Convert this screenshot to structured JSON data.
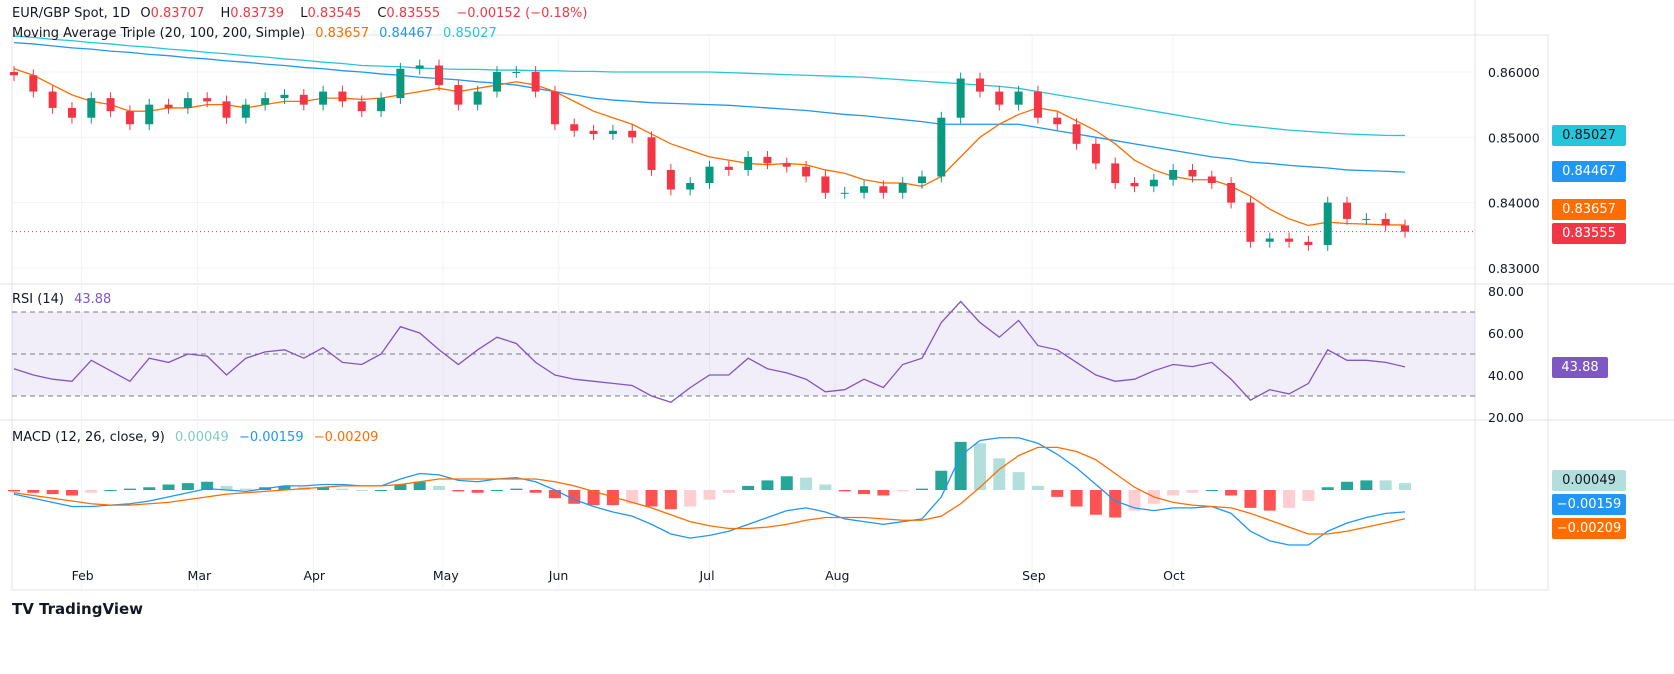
{
  "header": {
    "symbol": "EUR/GBP Spot, 1D",
    "open_label": "O",
    "open": "0.83707",
    "high_label": "H",
    "high": "0.83739",
    "low_label": "L",
    "low": "0.83545",
    "close_label": "C",
    "close": "0.83555",
    "change": "−0.00152 (−0.18%)"
  },
  "ma_legend": {
    "title": "Moving Average Triple (20, 100, 200, Simple)",
    "v20": "0.83657",
    "v100": "0.84467",
    "v200": "0.85027"
  },
  "rsi_legend": {
    "title": "RSI (14)",
    "value": "43.88"
  },
  "macd_legend": {
    "title": "MACD (12, 26, close, 9)",
    "hist": "0.00049",
    "macd": "−0.00159",
    "signal": "−0.00209"
  },
  "colors": {
    "up": "#089981",
    "down": "#f23645",
    "ma20": "#ff6d00",
    "ma100": "#2196f3",
    "ma200": "#26c6da",
    "rsi": "#7e57c2",
    "hist_up": "#26a69a",
    "hist_up_light": "#b2dfdb",
    "hist_down": "#ff5252",
    "hist_down_light": "#ffcdd2"
  },
  "footer": {
    "brand": "TradingView"
  },
  "chart_data": [
    {
      "type": "candlestick",
      "title": "EUR/GBP Spot, 1D",
      "ylim": [
        0.827,
        0.866
      ],
      "yticks": [
        "0.86000",
        "0.85000",
        "0.84000",
        "0.83000"
      ],
      "xticks": [
        {
          "label": "Feb",
          "index": 3.5
        },
        {
          "label": "Mar",
          "index": 9.5
        },
        {
          "label": "Apr",
          "index": 15.5
        },
        {
          "label": "May",
          "index": 22.2
        },
        {
          "label": "Jun",
          "index": 28.2
        },
        {
          "label": "Jul",
          "index": 36
        },
        {
          "label": "Aug",
          "index": 42.5
        },
        {
          "label": "Sep",
          "index": 52.7
        },
        {
          "label": "Oct",
          "index": 60
        }
      ],
      "first_open": 0.86,
      "close": [
        0.8595,
        0.857,
        0.8545,
        0.853,
        0.856,
        0.854,
        0.852,
        0.855,
        0.8545,
        0.856,
        0.8555,
        0.853,
        0.855,
        0.856,
        0.8565,
        0.855,
        0.857,
        0.8555,
        0.854,
        0.856,
        0.8605,
        0.861,
        0.858,
        0.855,
        0.857,
        0.86,
        0.86,
        0.857,
        0.852,
        0.851,
        0.8505,
        0.851,
        0.85,
        0.845,
        0.842,
        0.843,
        0.8455,
        0.845,
        0.847,
        0.846,
        0.8455,
        0.844,
        0.8415,
        0.8415,
        0.8425,
        0.8415,
        0.843,
        0.844,
        0.853,
        0.859,
        0.857,
        0.855,
        0.857,
        0.853,
        0.852,
        0.849,
        0.846,
        0.843,
        0.8425,
        0.8435,
        0.845,
        0.844,
        0.843,
        0.84,
        0.834,
        0.8345,
        0.834,
        0.8335,
        0.84,
        0.8375,
        0.8375,
        0.8365,
        0.83555
      ],
      "ma20": [
        0.8605,
        0.8595,
        0.858,
        0.8565,
        0.8555,
        0.855,
        0.854,
        0.854,
        0.8545,
        0.8545,
        0.855,
        0.855,
        0.8545,
        0.855,
        0.8555,
        0.8555,
        0.856,
        0.856,
        0.8558,
        0.856,
        0.8565,
        0.857,
        0.8575,
        0.857,
        0.8575,
        0.858,
        0.8585,
        0.858,
        0.857,
        0.8555,
        0.854,
        0.853,
        0.852,
        0.8505,
        0.849,
        0.848,
        0.847,
        0.8465,
        0.846,
        0.8458,
        0.846,
        0.8458,
        0.845,
        0.8445,
        0.8435,
        0.843,
        0.843,
        0.8425,
        0.844,
        0.847,
        0.85,
        0.852,
        0.8535,
        0.8545,
        0.854,
        0.8525,
        0.851,
        0.849,
        0.8465,
        0.845,
        0.844,
        0.8435,
        0.8435,
        0.8425,
        0.841,
        0.839,
        0.8375,
        0.8365,
        0.837,
        0.8368,
        0.8367,
        0.8366,
        0.83657
      ],
      "ma100": [
        0.8645,
        0.8643,
        0.864,
        0.8637,
        0.8635,
        0.8632,
        0.863,
        0.8627,
        0.8625,
        0.8622,
        0.862,
        0.8617,
        0.8615,
        0.8612,
        0.861,
        0.8607,
        0.8605,
        0.8602,
        0.86,
        0.8597,
        0.8595,
        0.8592,
        0.859,
        0.8588,
        0.8585,
        0.8583,
        0.858,
        0.8575,
        0.857,
        0.8565,
        0.856,
        0.8557,
        0.8555,
        0.8553,
        0.8552,
        0.8551,
        0.855,
        0.8549,
        0.8547,
        0.8545,
        0.8543,
        0.8541,
        0.8538,
        0.8535,
        0.8533,
        0.853,
        0.8527,
        0.8524,
        0.852,
        0.852,
        0.852,
        0.852,
        0.852,
        0.8515,
        0.851,
        0.8505,
        0.85,
        0.8495,
        0.849,
        0.8485,
        0.848,
        0.8475,
        0.847,
        0.8467,
        0.8462,
        0.846,
        0.8457,
        0.8455,
        0.8453,
        0.845,
        0.8449,
        0.8448,
        0.84467
      ],
      "ma200": [
        0.8655,
        0.8653,
        0.865,
        0.8648,
        0.8645,
        0.8643,
        0.864,
        0.8638,
        0.8635,
        0.8633,
        0.863,
        0.8628,
        0.8625,
        0.8623,
        0.862,
        0.8618,
        0.8615,
        0.8613,
        0.861,
        0.8609,
        0.8608,
        0.8606,
        0.8605,
        0.8604,
        0.8604,
        0.8603,
        0.8603,
        0.8602,
        0.8602,
        0.8601,
        0.8601,
        0.86,
        0.86,
        0.86,
        0.86,
        0.86,
        0.86,
        0.8599,
        0.8598,
        0.8597,
        0.8596,
        0.8595,
        0.8594,
        0.8593,
        0.8592,
        0.859,
        0.8588,
        0.8586,
        0.8584,
        0.8582,
        0.858,
        0.8578,
        0.8575,
        0.857,
        0.8565,
        0.856,
        0.8555,
        0.855,
        0.8545,
        0.854,
        0.8535,
        0.853,
        0.8525,
        0.852,
        0.8517,
        0.8514,
        0.8511,
        0.8509,
        0.8507,
        0.8505,
        0.8504,
        0.8503,
        0.85027
      ]
    },
    {
      "type": "line",
      "title": "RSI (14)",
      "ylim": [
        20,
        80
      ],
      "yticks": [
        "80.00",
        "60.00",
        "40.00",
        "20.00"
      ],
      "bands": [
        30,
        50,
        70
      ],
      "values": [
        43,
        40,
        38,
        37,
        47,
        42,
        37,
        48,
        46,
        50,
        49,
        40,
        48,
        51,
        52,
        48,
        53,
        46,
        45,
        50,
        63,
        60,
        52,
        45,
        52,
        58,
        55,
        46,
        40,
        38,
        37,
        36,
        35,
        30,
        27,
        34,
        40,
        40,
        48,
        43,
        41,
        38,
        32,
        33,
        38,
        34,
        45,
        48,
        65,
        75,
        65,
        58,
        66,
        54,
        52,
        46,
        40,
        37,
        38,
        42,
        45,
        44,
        46,
        38,
        28,
        33,
        31,
        36,
        52,
        47,
        47,
        46,
        43.88
      ]
    },
    {
      "type": "line+bar",
      "title": "MACD (12, 26, close, 9)",
      "macd": [
        -0.0003,
        -0.0006,
        -0.0009,
        -0.0012,
        -0.0012,
        -0.0011,
        -0.001,
        -0.0008,
        -0.0005,
        -0.0002,
        0.0001,
        0.0,
        -0.0001,
        0.0001,
        0.0003,
        0.0003,
        0.0004,
        0.0004,
        0.0003,
        0.0003,
        0.0008,
        0.0012,
        0.0011,
        0.0007,
        0.0006,
        0.0008,
        0.0009,
        0.0006,
        0.0,
        -0.0007,
        -0.0012,
        -0.0016,
        -0.0019,
        -0.0025,
        -0.0032,
        -0.0035,
        -0.0033,
        -0.003,
        -0.0025,
        -0.002,
        -0.0015,
        -0.0013,
        -0.0016,
        -0.0021,
        -0.0023,
        -0.0025,
        -0.0023,
        -0.0021,
        -0.0005,
        0.0025,
        0.0036,
        0.0038,
        0.0038,
        0.0034,
        0.0026,
        0.0016,
        0.0004,
        -0.0008,
        -0.0013,
        -0.0015,
        -0.0013,
        -0.0013,
        -0.0012,
        -0.0017,
        -0.003,
        -0.0037,
        -0.004,
        -0.004,
        -0.003,
        -0.0024,
        -0.002,
        -0.0017,
        -0.00159
      ],
      "signal": [
        -0.0002,
        -0.0004,
        -0.0006,
        -0.0008,
        -0.001,
        -0.0011,
        -0.0011,
        -0.001,
        -0.0009,
        -0.0007,
        -0.0005,
        -0.0003,
        -0.0002,
        -0.0001,
        0.0,
        0.0001,
        0.0002,
        0.0003,
        0.0003,
        0.0003,
        0.0004,
        0.0006,
        0.0008,
        0.0008,
        0.0008,
        0.0008,
        0.0008,
        0.0008,
        0.0006,
        0.0003,
        -0.0001,
        -0.0005,
        -0.0009,
        -0.0013,
        -0.0018,
        -0.0023,
        -0.0026,
        -0.0028,
        -0.0028,
        -0.0027,
        -0.0025,
        -0.0022,
        -0.002,
        -0.002,
        -0.002,
        -0.0021,
        -0.0022,
        -0.0022,
        -0.0019,
        -0.001,
        0.0002,
        0.0015,
        0.0025,
        0.0031,
        0.0031,
        0.0028,
        0.0022,
        0.0012,
        0.0002,
        -0.0005,
        -0.0009,
        -0.0011,
        -0.0012,
        -0.0013,
        -0.0017,
        -0.0022,
        -0.0027,
        -0.0032,
        -0.0032,
        -0.003,
        -0.0027,
        -0.0024,
        -0.00209
      ]
    }
  ]
}
